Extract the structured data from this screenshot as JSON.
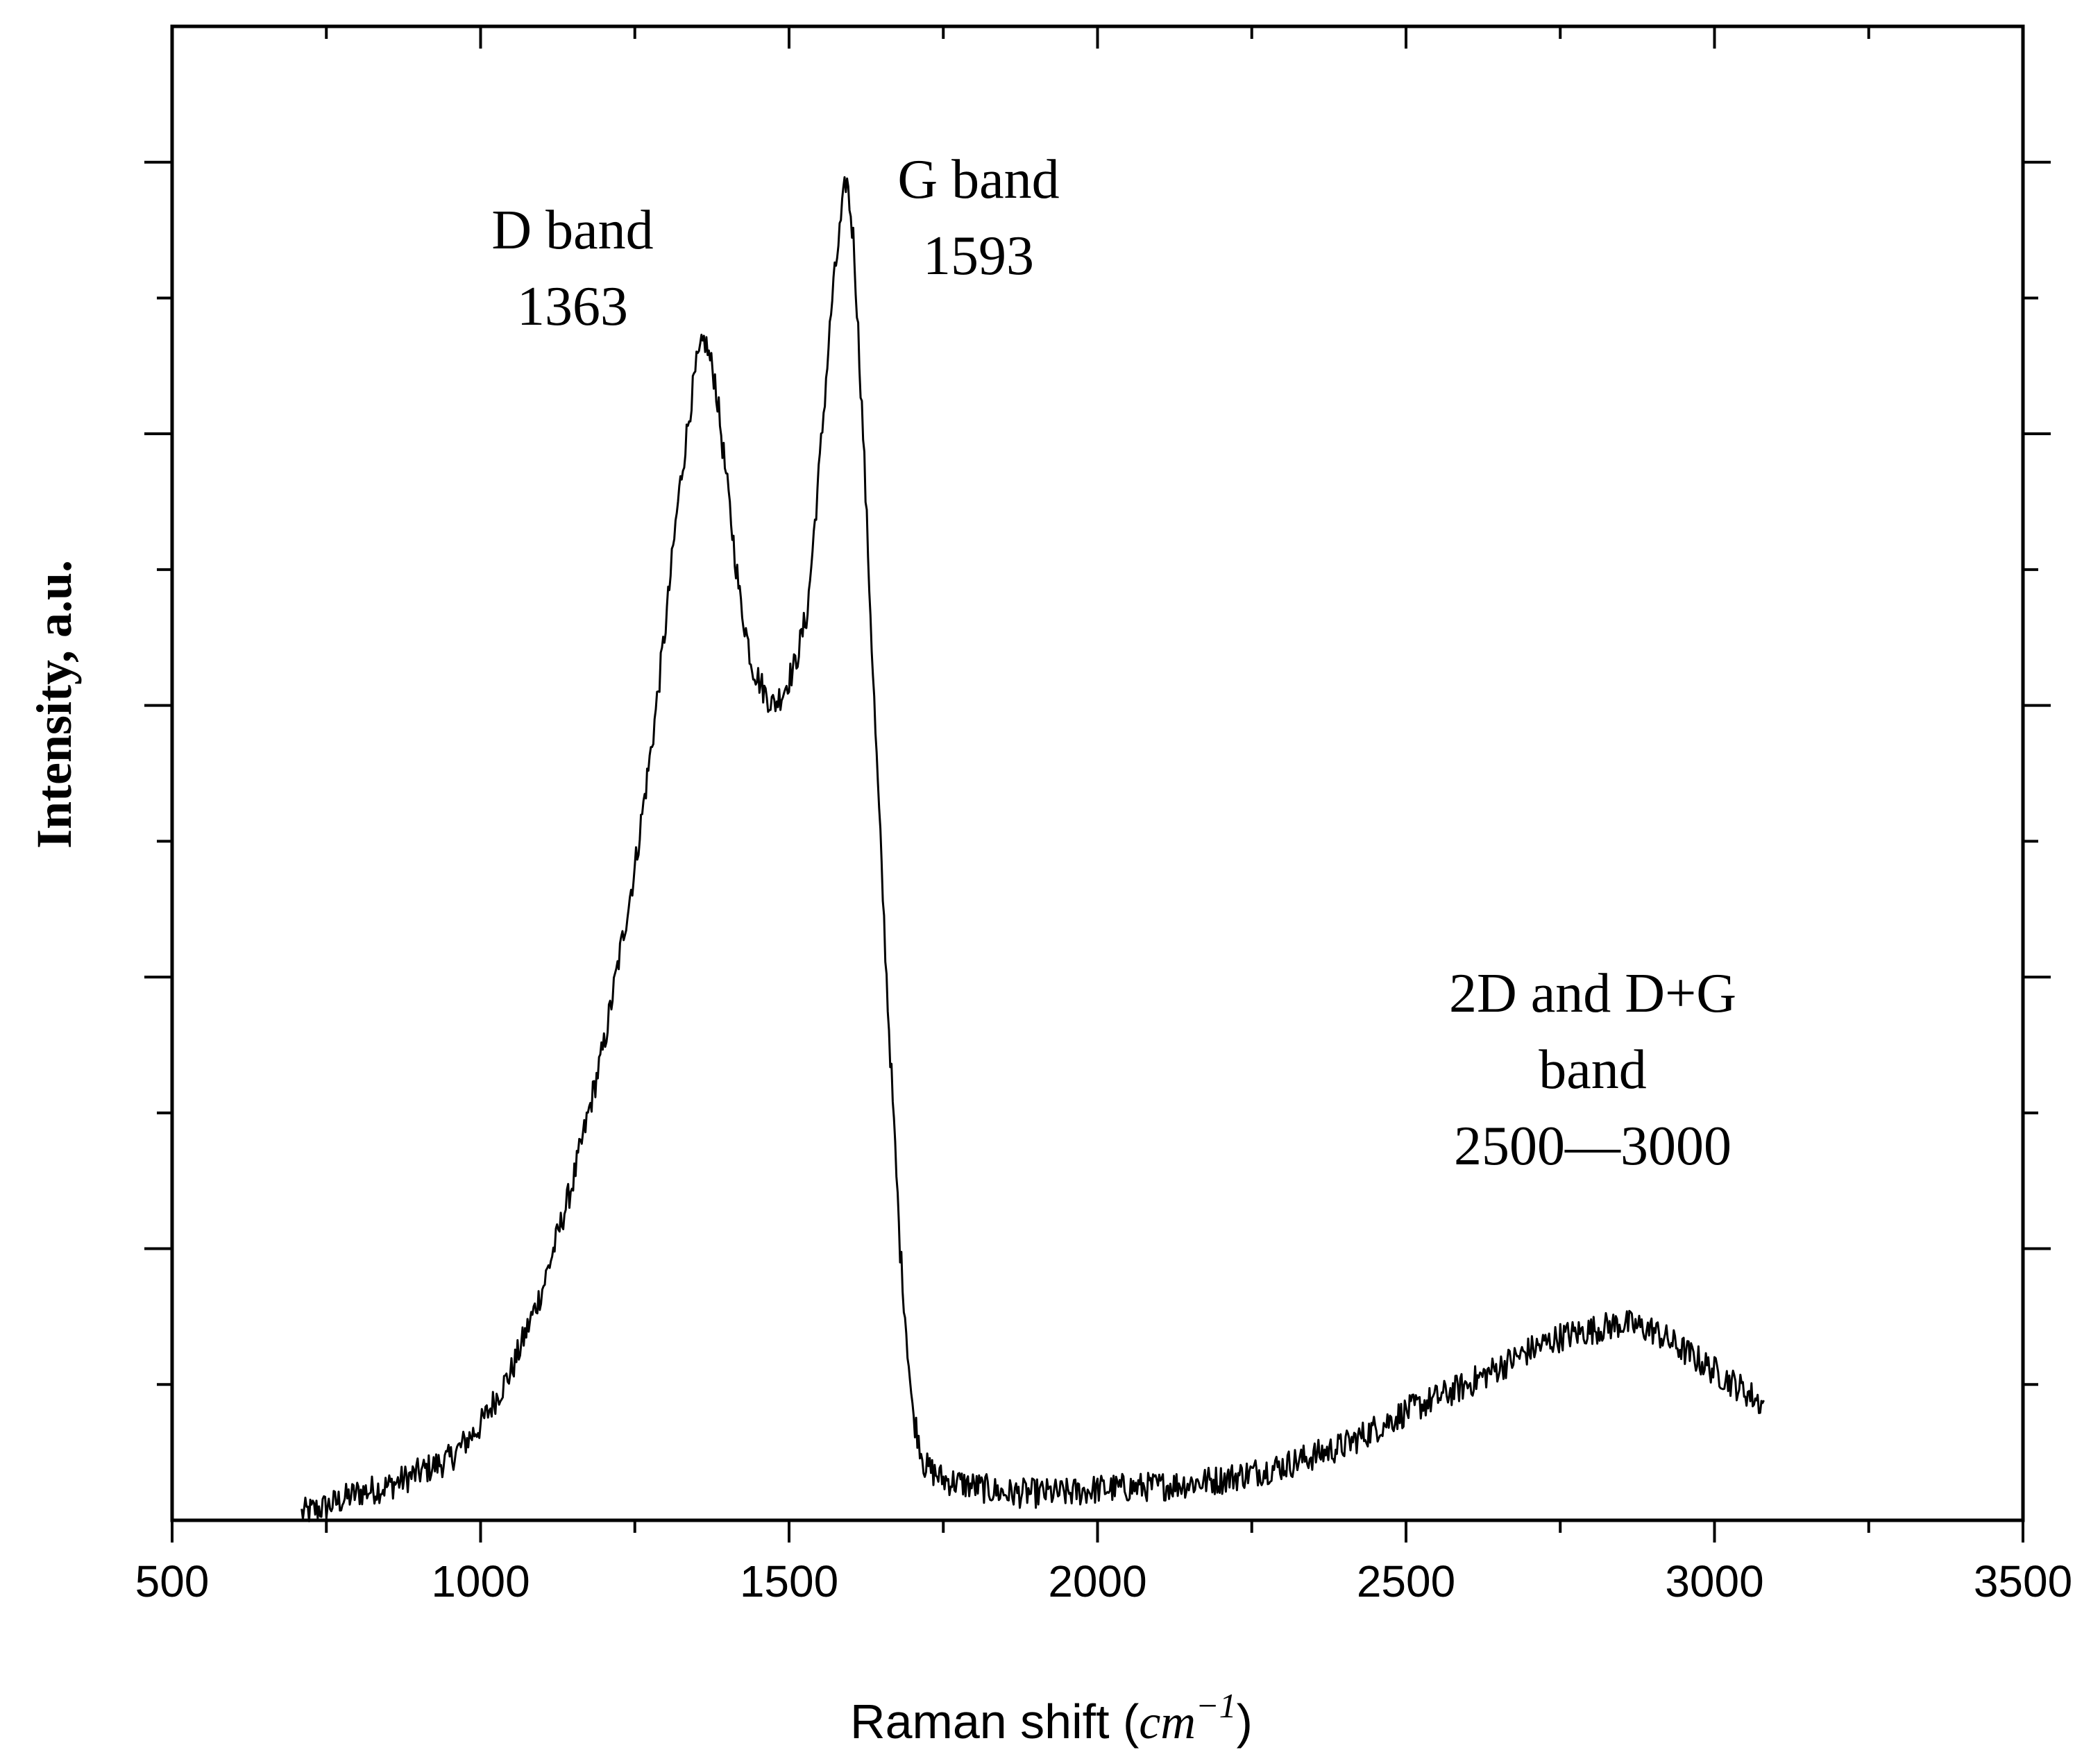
{
  "chart_data": {
    "type": "line",
    "title": "",
    "xlabel_prefix": "Raman shift (",
    "xlabel_unit": "cm",
    "xlabel_exp": "−1",
    "xlabel_suffix": ")",
    "ylabel": "Intensity, a.u.",
    "xlim": [
      500,
      3500
    ],
    "ylim": [
      0,
      1.1
    ],
    "x_ticks": [
      500,
      1000,
      1500,
      2000,
      2500,
      3000,
      3500
    ],
    "x_tick_labels": [
      "500",
      "1000",
      "1500",
      "2000",
      "2500",
      "3000",
      "3500"
    ],
    "x_minor_step": 250,
    "y_ticks": [
      0.1,
      0.2,
      0.3,
      0.4,
      0.5,
      0.6,
      0.7,
      0.8,
      0.9,
      1.0
    ],
    "y_tick_labels": [],
    "grid": false,
    "line_color": "#000000",
    "series": [
      {
        "name": "Raman spectrum",
        "x": [
          710,
          750,
          800,
          850,
          900,
          950,
          1000,
          1050,
          1100,
          1150,
          1200,
          1250,
          1280,
          1300,
          1320,
          1340,
          1350,
          1363,
          1380,
          1400,
          1420,
          1440,
          1460,
          1475,
          1490,
          1510,
          1530,
          1550,
          1570,
          1585,
          1593,
          1605,
          1620,
          1640,
          1660,
          1680,
          1700,
          1720,
          1750,
          1800,
          1850,
          1900,
          1950,
          2000,
          2100,
          2200,
          2300,
          2400,
          2500,
          2600,
          2700,
          2750,
          2800,
          2850,
          2900,
          2950,
          3000,
          3050,
          3080
        ],
        "y": [
          0.005,
          0.01,
          0.02,
          0.025,
          0.035,
          0.045,
          0.07,
          0.11,
          0.17,
          0.25,
          0.35,
          0.48,
          0.58,
          0.66,
          0.75,
          0.82,
          0.85,
          0.87,
          0.84,
          0.76,
          0.68,
          0.63,
          0.61,
          0.6,
          0.61,
          0.63,
          0.67,
          0.78,
          0.9,
          0.96,
          0.99,
          0.94,
          0.8,
          0.58,
          0.38,
          0.2,
          0.08,
          0.04,
          0.03,
          0.025,
          0.02,
          0.02,
          0.02,
          0.023,
          0.025,
          0.03,
          0.04,
          0.055,
          0.08,
          0.1,
          0.125,
          0.135,
          0.14,
          0.145,
          0.14,
          0.125,
          0.11,
          0.095,
          0.085
        ]
      }
    ],
    "annotations": [
      {
        "lines": [
          "D band",
          "1363"
        ],
        "x": 1363,
        "y": 0.87
      },
      {
        "lines": [
          "G band",
          "1593"
        ],
        "x": 1593,
        "y": 0.99
      },
      {
        "lines": [
          "2D and D+G",
          "band",
          "2500—3000"
        ],
        "x": 2750,
        "y": 0.145
      }
    ]
  }
}
